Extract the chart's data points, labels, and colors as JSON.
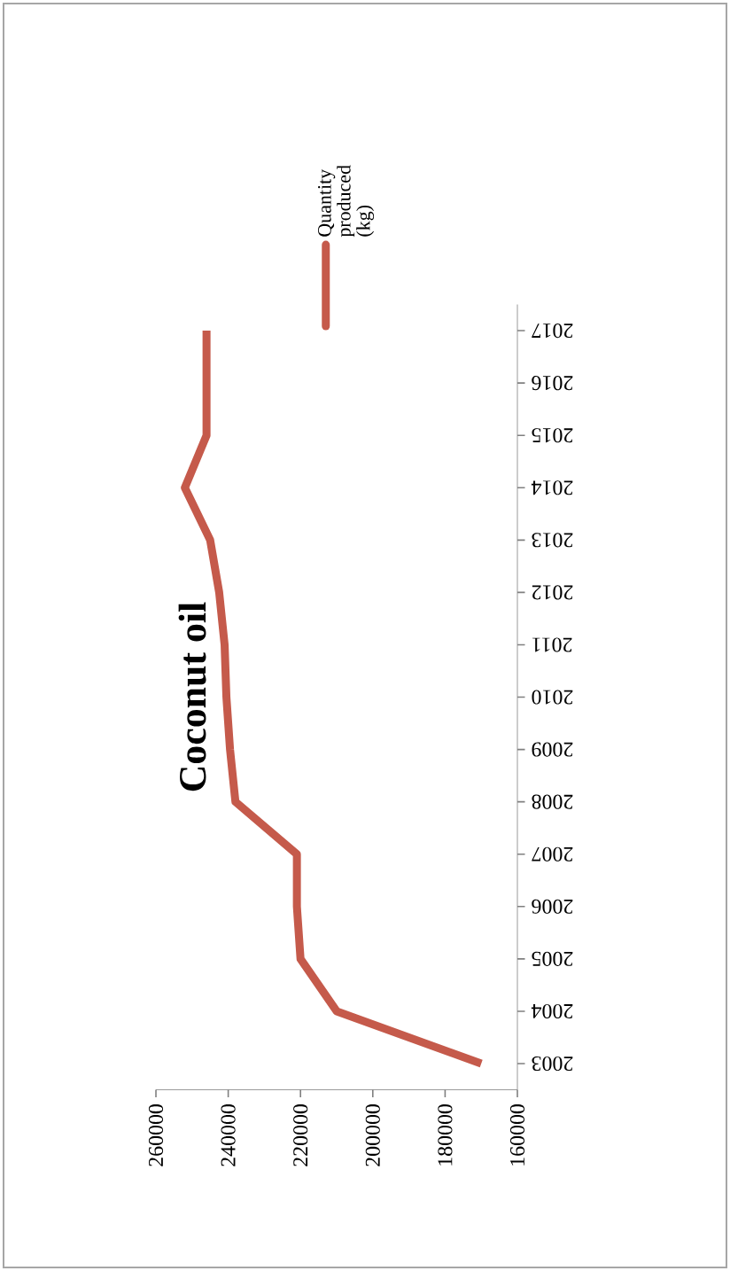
{
  "chart_data": {
    "type": "line",
    "title": "Coconut oil",
    "orientation": "horizontal",
    "categories": [
      "2017",
      "2016",
      "2015",
      "2014",
      "2013",
      "2012",
      "2011",
      "2010",
      "2009",
      "2008",
      "2007",
      "2006",
      "2005",
      "2004",
      "2003"
    ],
    "series": [
      {
        "name": "Quantity produced (kg)",
        "color": "#c55a4b",
        "values": [
          246000,
          246000,
          246000,
          252000,
          245000,
          242500,
          241000,
          240500,
          239500,
          238000,
          221000,
          221000,
          220000,
          210000,
          170000
        ]
      }
    ],
    "xlim": [
      260000,
      160000
    ],
    "xticks": [
      260000,
      240000,
      220000,
      200000,
      180000,
      160000
    ],
    "legend": "right",
    "grid": false,
    "marker": "none",
    "line_style": "solid"
  }
}
